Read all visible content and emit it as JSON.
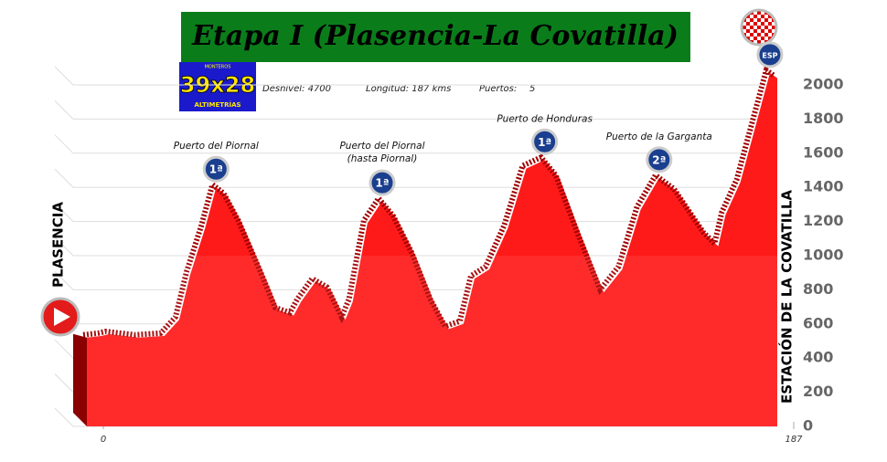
{
  "header": {
    "title": "Etapa I (Plasencia-La Covatilla)",
    "logo_small": "MONTEROS",
    "logo": "39x28",
    "logo_sub": "ALTIMETRÍAS"
  },
  "info": {
    "desnivel": "Desnivel: 4700",
    "longitud": "Longitud: 187 kms",
    "puertos_label": "Puertos:",
    "puertos": "5"
  },
  "start": "PLASENCIA",
  "finish": "ESTACIÓN DE LA COVATILLA",
  "chart_data": {
    "type": "area",
    "color": "#ff1a1a",
    "x": [
      0,
      4,
      6,
      14,
      21,
      25,
      28,
      32,
      35,
      38,
      42,
      48,
      52,
      56,
      58,
      62,
      66,
      70,
      72,
      76,
      80,
      84,
      89,
      94,
      98,
      102,
      105,
      109,
      114,
      119,
      124,
      128,
      134,
      140,
      145,
      150,
      155,
      160,
      165,
      168,
      171,
      173,
      177,
      181,
      185,
      187
    ],
    "values": [
      520,
      530,
      540,
      520,
      530,
      625,
      890,
      1160,
      1400,
      1350,
      1190,
      890,
      680,
      650,
      730,
      850,
      800,
      625,
      730,
      1190,
      1320,
      1215,
      1000,
      730,
      570,
      600,
      865,
      920,
      1160,
      1510,
      1560,
      1455,
      1110,
      785,
      920,
      1270,
      1455,
      1375,
      1215,
      1120,
      1055,
      1240,
      1430,
      1750,
      2070,
      2040
    ],
    "xlim": [
      0,
      187
    ],
    "xticks": [
      0,
      187
    ],
    "ylim": [
      0,
      2100
    ],
    "yticks": [
      0,
      200,
      400,
      600,
      800,
      1000,
      1200,
      1400,
      1600,
      1800,
      2000
    ],
    "grid": true,
    "passes": [
      {
        "name": "Puerto del Piornal",
        "category": "1ª",
        "km": 35,
        "elevation": 1400
      },
      {
        "name": "Puerto del Piornal",
        "name2": "(hasta Piornal)",
        "category": "1ª",
        "km": 80,
        "elevation": 1320
      },
      {
        "name": "Puerto de Honduras",
        "category": "1ª",
        "km": 124,
        "elevation": 1560
      },
      {
        "name": "Puerto de la Garganta",
        "category": "2ª",
        "km": 155,
        "elevation": 1455
      },
      {
        "category": "ESP",
        "km": 185,
        "elevation": 2070
      }
    ]
  }
}
